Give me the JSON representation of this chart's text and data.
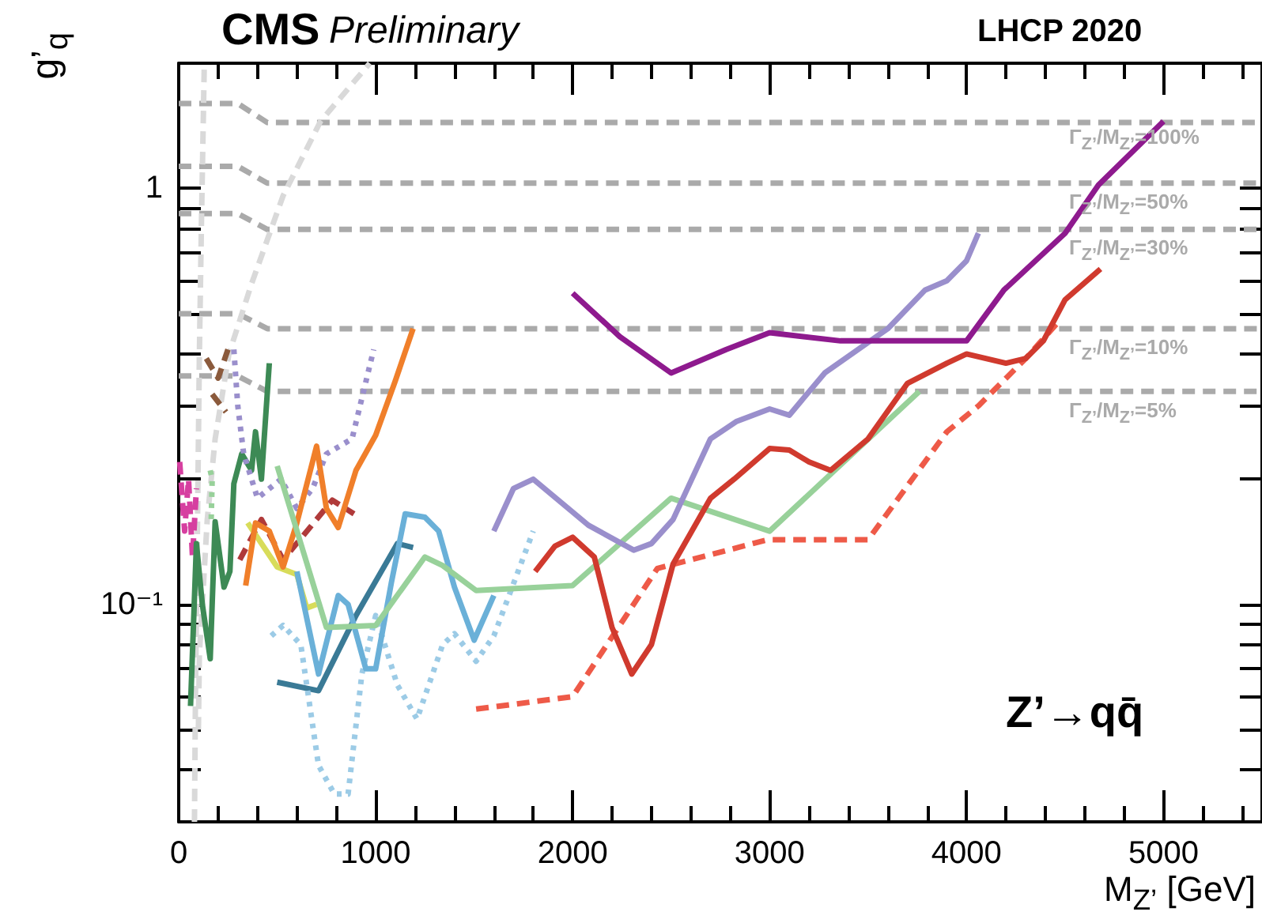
{
  "chart_data": {
    "type": "line",
    "xlabel": "M$_{Z’}$ [GeV]",
    "ylabel": "g’$_{q}$",
    "log": "y",
    "xlim": [
      0,
      5500
    ],
    "ylim": [
      0.03,
      2
    ],
    "xticks": [
      0,
      {
        "value": 200,
        "label": null
      },
      {
        "value": 400,
        "label": null
      },
      {
        "value": 600,
        "label": null
      },
      {
        "value": 800,
        "label": null
      },
      1000,
      {
        "value": 1200,
        "label": null
      },
      {
        "value": 1400,
        "label": null
      },
      {
        "value": 1600,
        "label": null
      },
      {
        "value": 1800,
        "label": null
      },
      2000,
      {
        "value": 2200,
        "label": null
      },
      {
        "value": 2400,
        "label": null
      },
      {
        "value": 2600,
        "label": null
      },
      {
        "value": 2800,
        "label": null
      },
      3000,
      {
        "value": 3200,
        "label": null
      },
      {
        "value": 3400,
        "label": null
      },
      {
        "value": 3600,
        "label": null
      },
      {
        "value": 3800,
        "label": null
      },
      4000,
      {
        "value": 4200,
        "label": null
      },
      {
        "value": 4400,
        "label": null
      },
      {
        "value": 4600,
        "label": null
      },
      {
        "value": 4800,
        "label": null
      },
      5000,
      {
        "value": 5200,
        "label": null
      },
      {
        "value": 5400,
        "label": null
      }
    ],
    "yticks": [
      {
        "value": 0.03,
        "label": null
      },
      {
        "value": 0.04,
        "label": null
      },
      {
        "value": 0.05,
        "label": null
      },
      {
        "value": 0.06,
        "label": null
      },
      {
        "value": 0.07,
        "label": null
      },
      {
        "value": 0.08,
        "label": null
      },
      {
        "value": 0.09,
        "label": null
      },
      {
        "value": 0.1,
        "label": "10⁻¹"
      },
      {
        "value": 0.2,
        "label": null
      },
      {
        "value": 0.3,
        "label": null
      },
      {
        "value": 0.4,
        "label": null
      },
      {
        "value": 0.5,
        "label": null
      },
      {
        "value": 0.6,
        "label": null
      },
      {
        "value": 0.7,
        "label": null
      },
      {
        "value": 0.8,
        "label": null
      },
      {
        "value": 0.9,
        "label": null
      },
      {
        "value": 1,
        "label": "1"
      },
      {
        "value": 2,
        "label": null
      }
    ],
    "grid": false,
    "annotations": [
      "CMS",
      "Preliminary",
      "LHCP 2020",
      "Z’→qq̄",
      "Γ$_{Z’}$/M$_{Z’}$=100%",
      "Γ$_{Z’}$/M$_{Z’}$=50%",
      "Γ$_{Z’}$/M$_{Z’}$=30%",
      "Γ$_{Z’}$/M$_{Z’}$=10%",
      "Γ$_{Z’}$/M$_{Z’}$=5%"
    ],
    "series": [
      {
        "color": "#aaaaaa",
        "line_style": "dashed",
        "x": [
          0,
          300,
          450,
          5500
        ],
        "values": [
          1.6,
          1.6,
          1.44,
          1.44
        ]
      },
      {
        "color": "#aaaaaa",
        "line_style": "dashed",
        "x": [
          0,
          300,
          450,
          5500
        ],
        "values": [
          1.13,
          1.13,
          1.03,
          1.03
        ]
      },
      {
        "color": "#aaaaaa",
        "line_style": "dashed",
        "x": [
          0,
          300,
          450,
          5500
        ],
        "values": [
          0.87,
          0.87,
          0.797,
          0.797
        ]
      },
      {
        "color": "#aaaaaa",
        "line_style": "dashed",
        "x": [
          0,
          300,
          450,
          5500
        ],
        "values": [
          0.5,
          0.5,
          0.46,
          0.46
        ]
      },
      {
        "color": "#aaaaaa",
        "line_style": "dashed",
        "x": [
          0,
          300,
          450,
          5500
        ],
        "values": [
          0.354,
          0.354,
          0.325,
          0.325
        ]
      },
      {
        "color": "#d9d9d9",
        "line_style": "dashed",
        "x": [
          80,
          85,
          95,
          105,
          115,
          130
        ],
        "values": [
          0.03,
          0.06,
          0.15,
          0.4,
          0.8,
          2
        ]
      },
      {
        "color": "#d9d9d9",
        "line_style": "dashed",
        "x": [
          100,
          105,
          145,
          185,
          255,
          370,
          530,
          720,
          970
        ],
        "values": [
          0.05,
          0.076,
          0.16,
          0.25,
          0.4,
          0.59,
          0.96,
          1.45,
          2
        ]
      },
      {
        "color": "#d63fa0",
        "line_style": "dashed",
        "x": [
          5,
          30,
          50,
          70,
          90
        ],
        "values": [
          0.22,
          0.15,
          0.2,
          0.13,
          0.19
        ]
      },
      {
        "color": "#98d19a",
        "line_style": "dotted",
        "x": [
          160,
          170,
          165
        ],
        "values": [
          0.21,
          0.2,
          0.16
        ]
      },
      {
        "color": "#3d8a55",
        "line_style": "solid",
        "x": [
          60,
          90,
          120,
          160,
          185,
          230,
          260,
          280,
          320,
          370,
          390,
          420,
          460
        ],
        "values": [
          0.057,
          0.14,
          0.1,
          0.074,
          0.158,
          0.11,
          0.12,
          0.195,
          0.23,
          0.21,
          0.26,
          0.2,
          0.38
        ]
      },
      {
        "color": "#8b5a3c",
        "line_style": "dashed",
        "x": [
          140,
          200,
          250
        ],
        "values": [
          0.39,
          0.35,
          0.41
        ]
      },
      {
        "color": "#8b5a3c",
        "line_style": "dashed",
        "x": [
          170,
          240
        ],
        "values": [
          0.32,
          0.29
        ]
      },
      {
        "color": "#9a8fcc",
        "line_style": "dotted",
        "x": [
          280,
          300,
          330,
          400,
          520,
          600,
          680,
          750,
          880,
          990
        ],
        "values": [
          0.41,
          0.3,
          0.23,
          0.18,
          0.2,
          0.17,
          0.19,
          0.23,
          0.25,
          0.41
        ]
      },
      {
        "color": "#b03a3a",
        "line_style": "dashed",
        "x": [
          310,
          420,
          530,
          700,
          780,
          890
        ],
        "values": [
          0.128,
          0.16,
          0.128,
          0.16,
          0.178,
          0.165
        ]
      },
      {
        "color": "#d8dc5a",
        "line_style": "solid",
        "x": [
          350,
          500,
          600,
          650,
          700
        ],
        "values": [
          0.157,
          0.123,
          0.118,
          0.098,
          0.1
        ]
      },
      {
        "color": "#f07f2a",
        "line_style": "solid",
        "x": [
          340,
          390,
          460,
          530,
          600,
          700,
          750,
          810,
          900,
          1000,
          1100,
          1190
        ],
        "values": [
          0.111,
          0.157,
          0.15,
          0.123,
          0.157,
          0.24,
          0.17,
          0.153,
          0.21,
          0.255,
          0.345,
          0.46
        ]
      },
      {
        "color": "#3a7a96",
        "line_style": "solid",
        "x": [
          500,
          710,
          900,
          1110,
          1190
        ],
        "values": [
          0.065,
          0.062,
          0.094,
          0.14,
          0.137
        ]
      },
      {
        "color": "#9ccbe6",
        "line_style": "dotted",
        "x": [
          470,
          530,
          620,
          710,
          790,
          860,
          930,
          1000,
          1110,
          1210,
          1340,
          1400,
          1510,
          1600,
          1800
        ],
        "values": [
          0.084,
          0.089,
          0.08,
          0.041,
          0.035,
          0.035,
          0.068,
          0.094,
          0.064,
          0.053,
          0.08,
          0.085,
          0.073,
          0.084,
          0.15
        ]
      },
      {
        "color": "#6ab0d8",
        "line_style": "solid",
        "x": [
          600,
          710,
          810,
          860,
          950,
          1000,
          1080,
          1150,
          1250,
          1320,
          1400,
          1500,
          1600
        ],
        "values": [
          0.12,
          0.068,
          0.105,
          0.1,
          0.07,
          0.07,
          0.113,
          0.165,
          0.162,
          0.15,
          0.11,
          0.082,
          0.105
        ]
      },
      {
        "color": "#98d19a",
        "line_style": "solid",
        "x": [
          500,
          750,
          1000,
          1250,
          1340,
          1510,
          2000,
          2500,
          3000,
          3760
        ],
        "values": [
          0.215,
          0.088,
          0.089,
          0.13,
          0.124,
          0.108,
          0.111,
          0.18,
          0.15,
          0.325
        ]
      },
      {
        "color": "#9a8fcc",
        "line_style": "solid",
        "x": [
          1600,
          1700,
          1800,
          2080,
          2310,
          2400,
          2510,
          2700,
          2830,
          3000,
          3100,
          3280,
          3600,
          3790,
          3900,
          4000,
          4060
        ],
        "values": [
          0.15,
          0.19,
          0.2,
          0.155,
          0.135,
          0.14,
          0.16,
          0.25,
          0.275,
          0.295,
          0.285,
          0.36,
          0.46,
          0.57,
          0.6,
          0.67,
          0.78
        ]
      },
      {
        "color": "#ee5a48",
        "line_style": "dashed",
        "x": [
          1510,
          2000,
          2430,
          2990,
          3500,
          3900,
          4060,
          4300,
          4470
        ],
        "values": [
          0.056,
          0.06,
          0.122,
          0.143,
          0.143,
          0.26,
          0.3,
          0.39,
          0.48
        ]
      },
      {
        "color": "#d03a2e",
        "line_style": "solid",
        "x": [
          1810,
          1910,
          2000,
          2110,
          2200,
          2300,
          2400,
          2510,
          2700,
          2820,
          3000,
          3100,
          3200,
          3310,
          3500,
          3700,
          3900,
          4000,
          4200,
          4300,
          4390,
          4500,
          4680
        ],
        "values": [
          0.12,
          0.138,
          0.145,
          0.13,
          0.088,
          0.068,
          0.08,
          0.125,
          0.18,
          0.2,
          0.237,
          0.235,
          0.22,
          0.21,
          0.25,
          0.34,
          0.38,
          0.4,
          0.38,
          0.39,
          0.43,
          0.54,
          0.64
        ]
      },
      {
        "color": "#8e1a8e",
        "line_style": "solid",
        "x": [
          2000,
          2240,
          2500,
          2780,
          3000,
          3360,
          4000,
          4190,
          4500,
          4670,
          5000
        ],
        "values": [
          0.56,
          0.44,
          0.36,
          0.41,
          0.45,
          0.43,
          0.43,
          0.57,
          0.78,
          1.02,
          1.45
        ]
      }
    ]
  }
}
